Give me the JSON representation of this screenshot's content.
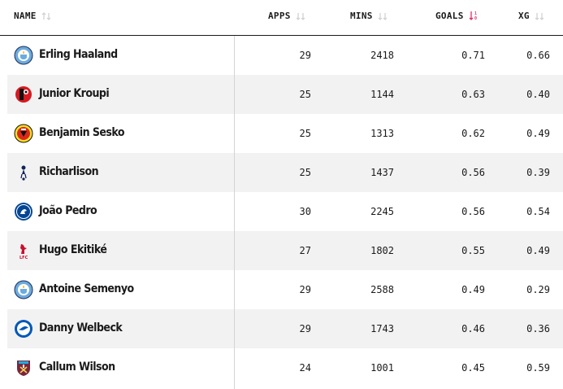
{
  "columns": {
    "name": "NAME",
    "apps": "APPS",
    "mins": "MINS",
    "goals": "GOALS",
    "xg": "XG",
    "sorted_by": "GOALS",
    "sort_direction": "descending"
  },
  "players": [
    {
      "name": "Erling Haaland",
      "club_icon": "manchester-city-crest-icon",
      "apps": "29",
      "mins": "2418",
      "goals": "0.71",
      "xg": "0.66"
    },
    {
      "name": "Junior Kroupi",
      "club_icon": "bournemouth-crest-icon",
      "apps": "25",
      "mins": "1144",
      "goals": "0.63",
      "xg": "0.40"
    },
    {
      "name": "Benjamin Sesko",
      "club_icon": "manchester-united-crest-icon",
      "apps": "25",
      "mins": "1313",
      "goals": "0.62",
      "xg": "0.49"
    },
    {
      "name": "Richarlison",
      "club_icon": "tottenham-crest-icon",
      "apps": "25",
      "mins": "1437",
      "goals": "0.56",
      "xg": "0.39"
    },
    {
      "name": "João Pedro",
      "club_icon": "chelsea-crest-icon",
      "apps": "30",
      "mins": "2245",
      "goals": "0.56",
      "xg": "0.54"
    },
    {
      "name": "Hugo Ekitiké",
      "club_icon": "liverpool-crest-icon",
      "apps": "27",
      "mins": "1802",
      "goals": "0.55",
      "xg": "0.49"
    },
    {
      "name": "Antoine Semenyo",
      "club_icon": "manchester-city-crest-icon",
      "apps": "29",
      "mins": "2588",
      "goals": "0.49",
      "xg": "0.29"
    },
    {
      "name": "Danny Welbeck",
      "club_icon": "brighton-crest-icon",
      "apps": "29",
      "mins": "1743",
      "goals": "0.46",
      "xg": "0.36"
    },
    {
      "name": "Callum Wilson",
      "club_icon": "west-ham-crest-icon",
      "apps": "24",
      "mins": "1001",
      "goals": "0.45",
      "xg": "0.59"
    }
  ],
  "colors": {
    "accent_sort": "#e0306d",
    "row_alt": "#f2f2f2",
    "man_city": "#6cabdd",
    "bournemouth": "#d71920",
    "man_utd": "#da291c",
    "tottenham": "#132257",
    "chelsea": "#034694",
    "liverpool": "#c8102e",
    "brighton": "#0057b8",
    "west_ham": "#7a263a"
  }
}
